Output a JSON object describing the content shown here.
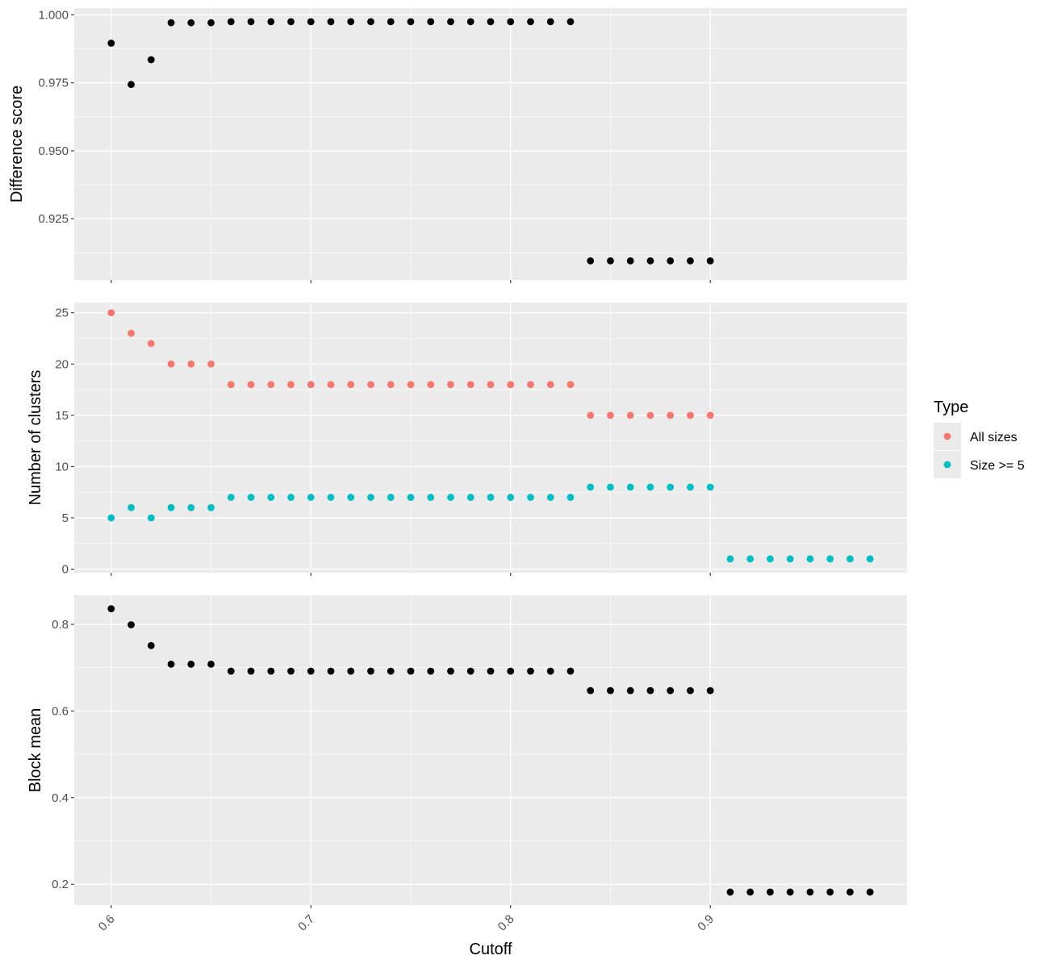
{
  "chart_data": [
    {
      "type": "scatter",
      "panel": "top",
      "ylabel": "Difference score",
      "yticks": [
        0.925,
        0.95,
        0.975,
        1.0
      ],
      "ytick_labels": [
        "0.925",
        "0.950",
        "0.975",
        "1.000"
      ],
      "ylim": [
        0.9025,
        1.0025
      ],
      "grid": true,
      "series": [
        {
          "color": "#000000",
          "x": [
            0.6,
            0.61,
            0.62,
            0.63,
            0.64,
            0.65,
            0.66,
            0.67,
            0.68,
            0.69,
            0.7,
            0.71,
            0.72,
            0.73,
            0.74,
            0.75,
            0.76,
            0.77,
            0.78,
            0.79,
            0.8,
            0.81,
            0.82,
            0.83,
            0.84,
            0.85,
            0.86,
            0.87,
            0.88,
            0.89,
            0.9
          ],
          "y": [
            0.9896,
            0.9744,
            0.9835,
            0.9971,
            0.9971,
            0.9971,
            0.9975,
            0.9975,
            0.9975,
            0.9975,
            0.9975,
            0.9975,
            0.9975,
            0.9975,
            0.9975,
            0.9975,
            0.9975,
            0.9975,
            0.9975,
            0.9975,
            0.9975,
            0.9975,
            0.9975,
            0.9975,
            0.9095,
            0.9095,
            0.9095,
            0.9095,
            0.9095,
            0.9095,
            0.9095
          ]
        }
      ]
    },
    {
      "type": "scatter",
      "panel": "middle",
      "ylabel": "Number of clusters",
      "yticks": [
        0,
        5,
        10,
        15,
        20,
        25
      ],
      "ytick_labels": [
        "0",
        "5",
        "10",
        "15",
        "20",
        "25"
      ],
      "ylim": [
        -0.35,
        26.0
      ],
      "grid": true,
      "series": [
        {
          "name": "All sizes",
          "color": "#F8766D",
          "x": [
            0.6,
            0.61,
            0.62,
            0.63,
            0.64,
            0.65,
            0.66,
            0.67,
            0.68,
            0.69,
            0.7,
            0.71,
            0.72,
            0.73,
            0.74,
            0.75,
            0.76,
            0.77,
            0.78,
            0.79,
            0.8,
            0.81,
            0.82,
            0.83,
            0.84,
            0.85,
            0.86,
            0.87,
            0.88,
            0.89,
            0.9
          ],
          "y": [
            25,
            23,
            22,
            20,
            20,
            20,
            18,
            18,
            18,
            18,
            18,
            18,
            18,
            18,
            18,
            18,
            18,
            18,
            18,
            18,
            18,
            18,
            18,
            18,
            15,
            15,
            15,
            15,
            15,
            15,
            15
          ]
        },
        {
          "name": "Size >= 5",
          "color": "#00BFC4",
          "x": [
            0.6,
            0.61,
            0.62,
            0.63,
            0.64,
            0.65,
            0.66,
            0.67,
            0.68,
            0.69,
            0.7,
            0.71,
            0.72,
            0.73,
            0.74,
            0.75,
            0.76,
            0.77,
            0.78,
            0.79,
            0.8,
            0.81,
            0.82,
            0.83,
            0.84,
            0.85,
            0.86,
            0.87,
            0.88,
            0.89,
            0.9,
            0.91,
            0.92,
            0.93,
            0.94,
            0.95,
            0.96,
            0.97,
            0.98
          ],
          "y": [
            5,
            6,
            5,
            6,
            6,
            6,
            7,
            7,
            7,
            7,
            7,
            7,
            7,
            7,
            7,
            7,
            7,
            7,
            7,
            7,
            7,
            7,
            7,
            7,
            8,
            8,
            8,
            8,
            8,
            8,
            8,
            1,
            1,
            1,
            1,
            1,
            1,
            1,
            1
          ]
        }
      ]
    },
    {
      "type": "scatter",
      "panel": "bottom",
      "ylabel": "Block mean",
      "xlabel": "Cutoff",
      "xticks": [
        0.6,
        0.7,
        0.8,
        0.9
      ],
      "xtick_labels": [
        "0.6",
        "0.7",
        "0.8",
        "0.9"
      ],
      "xlim": [
        0.5815,
        0.9985
      ],
      "yticks": [
        0.2,
        0.4,
        0.6,
        0.8
      ],
      "ytick_labels": [
        "0.2",
        "0.4",
        "0.6",
        "0.8"
      ],
      "ylim": [
        0.152,
        0.867
      ],
      "grid": true,
      "series": [
        {
          "color": "#000000",
          "x": [
            0.6,
            0.61,
            0.62,
            0.63,
            0.64,
            0.65,
            0.66,
            0.67,
            0.68,
            0.69,
            0.7,
            0.71,
            0.72,
            0.73,
            0.74,
            0.75,
            0.76,
            0.77,
            0.78,
            0.79,
            0.8,
            0.81,
            0.82,
            0.83,
            0.84,
            0.85,
            0.86,
            0.87,
            0.88,
            0.89,
            0.9,
            0.91,
            0.92,
            0.93,
            0.94,
            0.95,
            0.96,
            0.97,
            0.98
          ],
          "y": [
            0.836,
            0.799,
            0.751,
            0.708,
            0.708,
            0.708,
            0.692,
            0.692,
            0.692,
            0.692,
            0.692,
            0.692,
            0.692,
            0.692,
            0.692,
            0.692,
            0.692,
            0.692,
            0.692,
            0.692,
            0.692,
            0.692,
            0.692,
            0.692,
            0.647,
            0.647,
            0.647,
            0.647,
            0.647,
            0.647,
            0.647,
            0.182,
            0.182,
            0.182,
            0.182,
            0.182,
            0.182,
            0.182,
            0.182
          ]
        }
      ]
    }
  ],
  "legend": {
    "title": "Type",
    "entries": [
      {
        "label": "All sizes",
        "color": "#F8766D"
      },
      {
        "label": "Size >= 5",
        "color": "#00BFC4"
      }
    ]
  },
  "colors": {
    "panel_background": "#EBEBEB",
    "grid_major": "#FFFFFF",
    "tick_color": "#333333"
  }
}
